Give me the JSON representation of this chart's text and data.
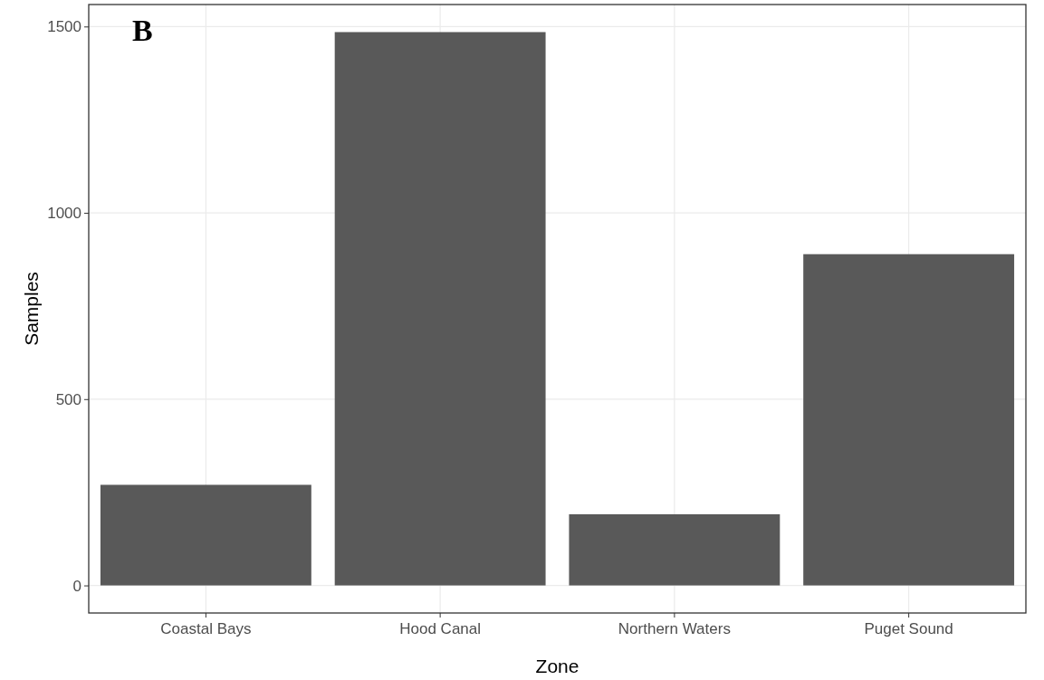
{
  "chart_data": {
    "type": "bar",
    "xlabel": "Zone",
    "ylabel": "Samples",
    "annotations": [
      "B"
    ],
    "categories": [
      "Coastal Bays",
      "Hood Canal",
      "Northern Waters",
      "Puget Sound"
    ],
    "values": [
      270,
      1485,
      191,
      889
    ],
    "color": "#595959",
    "ylim": [
      -74,
      1559
    ],
    "yticks": [
      0,
      500,
      1000,
      1500
    ],
    "grid": true
  }
}
